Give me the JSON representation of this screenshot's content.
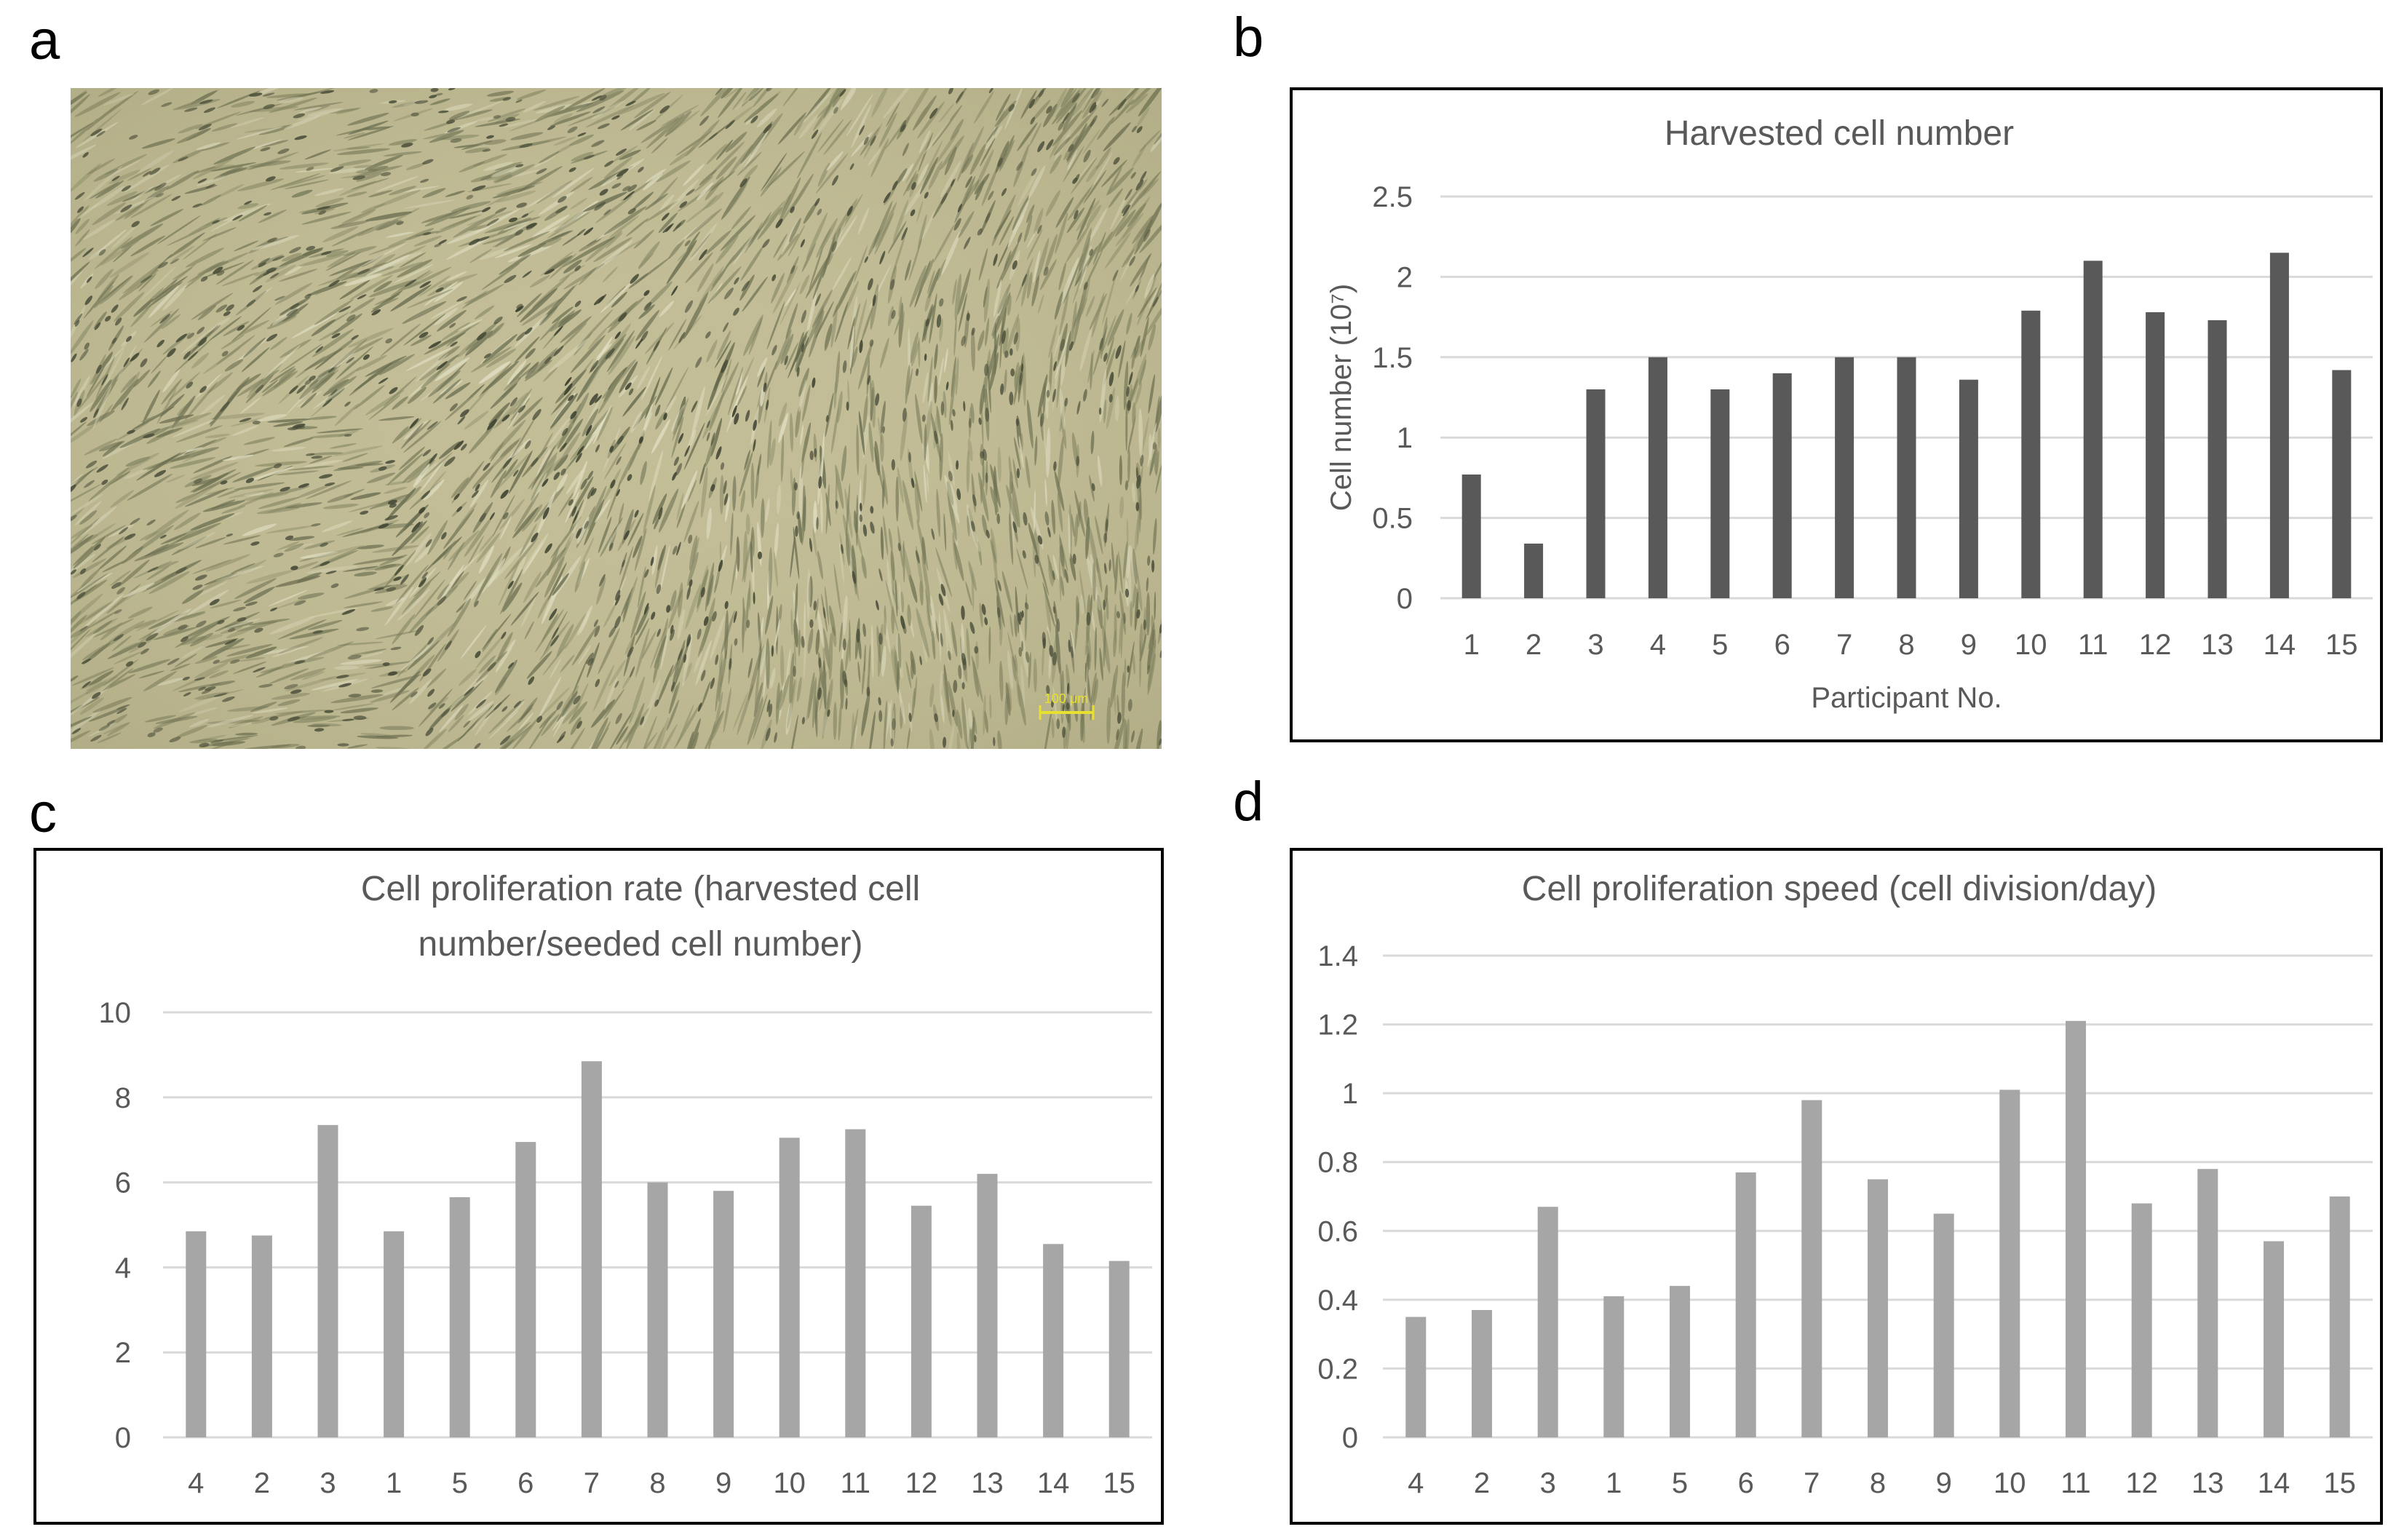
{
  "panels": {
    "a": "a",
    "b": "b",
    "c": "c",
    "d": "d"
  },
  "micrograph": {
    "scale_bar_label": "100 μm",
    "scale_bar_color": "#e8e030"
  },
  "chart_data": [
    {
      "id": "b",
      "type": "bar",
      "title": "Harvested cell number",
      "title_lines": [
        "Harvested cell number"
      ],
      "xlabel": "Participant No.",
      "ylabel": "Cell number (10⁷)",
      "ylim": [
        0,
        2.5
      ],
      "yticks": [
        0,
        0.5,
        1,
        1.5,
        2,
        2.5
      ],
      "ytick_labels": [
        "0",
        "0.5",
        "1",
        "1.5",
        "2",
        "2.5"
      ],
      "categories": [
        "1",
        "2",
        "3",
        "4",
        "5",
        "6",
        "7",
        "8",
        "9",
        "10",
        "11",
        "12",
        "13",
        "14",
        "15"
      ],
      "values": [
        0.77,
        0.34,
        1.3,
        1.5,
        1.3,
        1.4,
        1.5,
        1.5,
        1.36,
        1.79,
        2.1,
        1.78,
        1.73,
        2.15,
        1.42
      ],
      "bar_color": "#595959",
      "grid": true
    },
    {
      "id": "c",
      "type": "bar",
      "title": "Cell proliferation rate (harvested cell number/seeded cell number)",
      "title_lines": [
        "Cell proliferation rate (harvested cell",
        "number/seeded cell number)"
      ],
      "xlabel": "",
      "ylabel": "",
      "ylim": [
        0,
        10
      ],
      "yticks": [
        0,
        2,
        4,
        6,
        8,
        10
      ],
      "ytick_labels": [
        "0",
        "2",
        "4",
        "6",
        "8",
        "10"
      ],
      "categories": [
        "4",
        "2",
        "3",
        "1",
        "5",
        "6",
        "7",
        "8",
        "9",
        "10",
        "11",
        "12",
        "13",
        "14",
        "15"
      ],
      "values": [
        4.85,
        4.75,
        7.35,
        4.85,
        5.65,
        6.95,
        8.85,
        6.0,
        5.8,
        7.05,
        7.25,
        5.45,
        6.2,
        4.55,
        4.15
      ],
      "bar_color": "#a6a6a6",
      "grid": true
    },
    {
      "id": "d",
      "type": "bar",
      "title": "Cell proliferation speed (cell division/day)",
      "title_lines": [
        "Cell proliferation speed (cell division/day)"
      ],
      "xlabel": "",
      "ylabel": "",
      "ylim": [
        0,
        1.4
      ],
      "yticks": [
        0,
        0.2,
        0.4,
        0.6,
        0.8,
        1,
        1.2,
        1.4
      ],
      "ytick_labels": [
        "0",
        "0.2",
        "0.4",
        "0.6",
        "0.8",
        "1",
        "1.2",
        "1.4"
      ],
      "categories": [
        "4",
        "2",
        "3",
        "1",
        "5",
        "6",
        "7",
        "8",
        "9",
        "10",
        "11",
        "12",
        "13",
        "14",
        "15"
      ],
      "values": [
        0.35,
        0.37,
        0.67,
        0.41,
        0.44,
        0.77,
        0.98,
        0.75,
        0.65,
        1.01,
        1.21,
        0.68,
        0.78,
        0.57,
        0.7
      ],
      "bar_color": "#a6a6a6",
      "grid": true
    }
  ]
}
